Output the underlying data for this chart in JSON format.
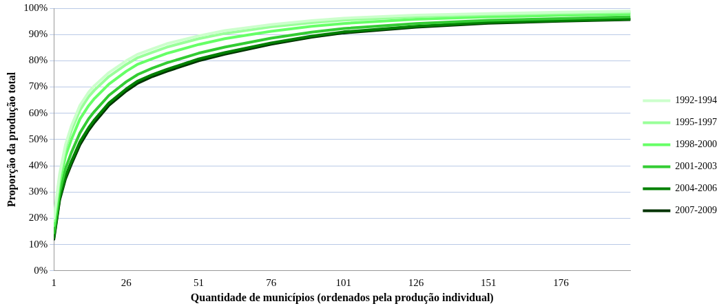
{
  "chart_data": {
    "type": "line",
    "xlabel": "Quantidade de municípios (ordenados pela produção individual)",
    "ylabel": "Proporção da produção total",
    "x": [
      1,
      3,
      5,
      7,
      10,
      13,
      15,
      20,
      26,
      30,
      35,
      40,
      51,
      60,
      76,
      90,
      101,
      126,
      151,
      176,
      200
    ],
    "xlim": [
      1,
      200
    ],
    "xticks": [
      1,
      26,
      51,
      76,
      101,
      126,
      151,
      176
    ],
    "ylim": [
      0,
      100
    ],
    "yticks": [
      {
        "value": 0,
        "label": "0%"
      },
      {
        "value": 10,
        "label": "10%"
      },
      {
        "value": 20,
        "label": "20%"
      },
      {
        "value": 30,
        "label": "30%"
      },
      {
        "value": 40,
        "label": "40%"
      },
      {
        "value": 50,
        "label": "50%"
      },
      {
        "value": 60,
        "label": "60%"
      },
      {
        "value": 70,
        "label": "70%"
      },
      {
        "value": 80,
        "label": "80%"
      },
      {
        "value": 90,
        "label": "90%"
      },
      {
        "value": 100,
        "label": "100%"
      }
    ],
    "grid": "y",
    "legend": "right",
    "marker": "none",
    "line_style": "solid",
    "series": [
      {
        "name": "1992-1994",
        "color": "#ccffcc",
        "values": [
          20,
          37,
          48,
          55,
          63,
          68,
          70.5,
          75.5,
          80,
          82.5,
          84.5,
          86.5,
          89.5,
          91.5,
          93.8,
          95.3,
          96.2,
          97.4,
          98,
          98.5,
          98.9
        ]
      },
      {
        "name": "1995-1997",
        "color": "#99ff99",
        "values": [
          19,
          35.8,
          46.4,
          53.3,
          61.2,
          66.3,
          68.8,
          74,
          78.6,
          81.2,
          83.2,
          85.2,
          88.4,
          90.4,
          92.9,
          94.5,
          95.5,
          96.8,
          97.6,
          98.1,
          98.5
        ]
      },
      {
        "name": "1998-2000",
        "color": "#66ff66",
        "values": [
          17.2,
          33.5,
          43.5,
          49.9,
          57.8,
          62.9,
          65.6,
          71.1,
          76,
          78.7,
          80.8,
          82.8,
          86.2,
          88.4,
          91.2,
          93.1,
          94.2,
          95.8,
          96.7,
          97.3,
          97.8
        ]
      },
      {
        "name": "2001-2003",
        "color": "#33cc33",
        "values": [
          14.4,
          30,
          38.9,
          44.9,
          52.5,
          57.9,
          60.7,
          66.8,
          72,
          74.8,
          77.2,
          79.2,
          82.9,
          85.2,
          88.6,
          90.9,
          92.3,
          94.2,
          95.4,
          96.1,
          96.7
        ]
      },
      {
        "name": "2004-2006",
        "color": "#008000",
        "values": [
          12.6,
          27.7,
          35.9,
          41.5,
          49.1,
          54.5,
          57.5,
          63.9,
          69.3,
          72.3,
          74.7,
          76.7,
          80.7,
          83.1,
          86.8,
          89.4,
          91,
          93.1,
          94.6,
          95.3,
          95.9
        ]
      },
      {
        "name": "2007-2009",
        "color": "#003300",
        "values": [
          12,
          27,
          35,
          40.5,
          48,
          53.5,
          56.5,
          63,
          68.5,
          71.5,
          74,
          76,
          80,
          82.5,
          86.3,
          89,
          90.6,
          92.8,
          94.3,
          95.1,
          95.7
        ]
      }
    ]
  }
}
